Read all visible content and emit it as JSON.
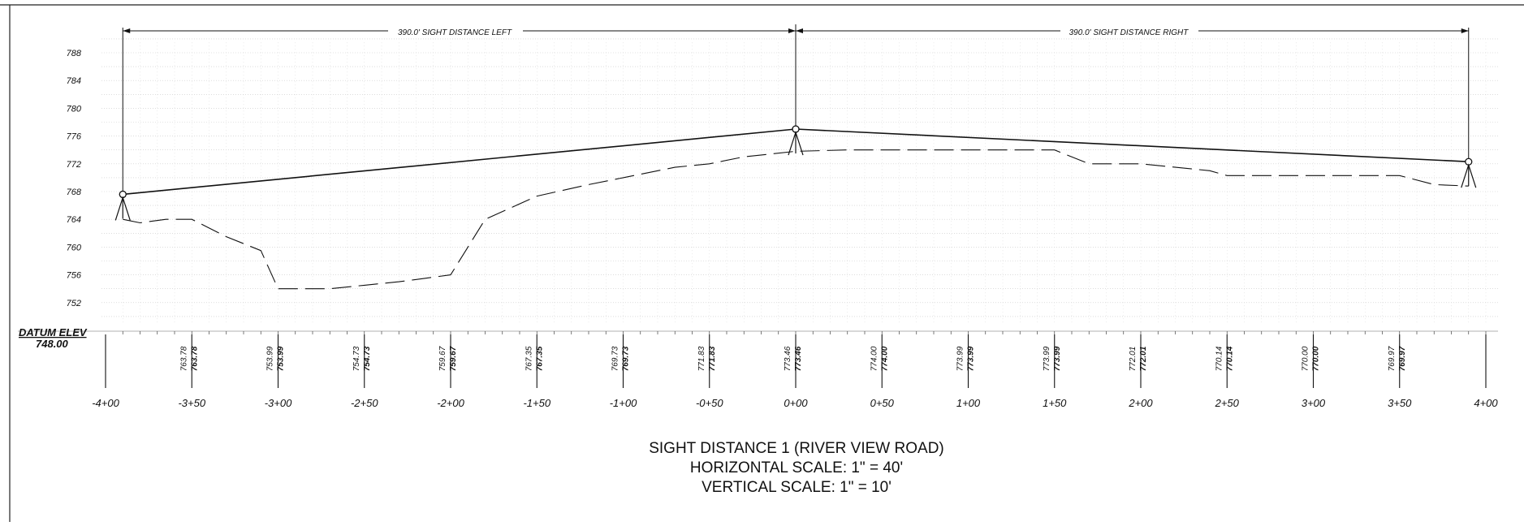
{
  "title_block": {
    "title": "SIGHT DISTANCE 1 (RIVER VIEW ROAD)",
    "horizontal_scale": "HORIZONTAL SCALE:  1\" = 40'",
    "vertical_scale": "VERTICAL SCALE:  1\" = 10'"
  },
  "datum": {
    "label": "DATUM ELEV",
    "value": "748.00"
  },
  "dimensions": {
    "left_label": "390.0' SIGHT DISTANCE LEFT",
    "right_label": "390.0' SIGHT DISTANCE RIGHT"
  },
  "chart_data": {
    "type": "line",
    "x_range": [
      -400,
      400
    ],
    "y_range": [
      748,
      790
    ],
    "y_ticks": [
      752,
      756,
      760,
      764,
      768,
      772,
      776,
      780,
      784,
      788
    ],
    "station_ticks": [
      -400,
      -350,
      -300,
      -250,
      -200,
      -150,
      -100,
      -50,
      0,
      50,
      100,
      150,
      200,
      250,
      300,
      350,
      400
    ],
    "station_labels": [
      "-4+00",
      "-3+50",
      "-3+00",
      "-2+50",
      "-2+00",
      "-1+50",
      "-1+00",
      "-0+50",
      "0+00",
      "0+50",
      "1+00",
      "1+50",
      "2+00",
      "2+50",
      "3+00",
      "3+50",
      "4+00"
    ],
    "elevation_stations": [
      -350,
      -300,
      -250,
      -200,
      -150,
      -100,
      -50,
      0,
      50,
      100,
      150,
      200,
      250,
      300,
      350
    ],
    "elevation_labels": [
      "763.78",
      "753.99",
      "754.73",
      "759.67",
      "767.35",
      "769.73",
      "771.83",
      "773.46",
      "774.00",
      "773.99",
      "773.99",
      "772.01",
      "770.14",
      "770.00",
      "769.97"
    ],
    "series": [
      {
        "line": "solid",
        "x": [
          -390,
          0,
          390
        ],
        "y": [
          767.6,
          777.0,
          772.3
        ]
      },
      {
        "line": "dashed",
        "x": [
          -390,
          -380,
          -365,
          -350,
          -330,
          -310,
          -300,
          -290,
          -270,
          -250,
          -230,
          -215,
          -200,
          -190,
          -180,
          -150,
          -120,
          -100,
          -70,
          -50,
          -30,
          0,
          30,
          100,
          150,
          170,
          200,
          240,
          250,
          300,
          350,
          370,
          390
        ],
        "y": [
          764.0,
          763.5,
          764.0,
          764.0,
          761.5,
          759.5,
          754.0,
          754.0,
          754.0,
          754.5,
          755.0,
          755.5,
          756.0,
          760.0,
          764.0,
          767.35,
          769.0,
          770.0,
          771.5,
          772.0,
          773.0,
          773.8,
          774.0,
          774.0,
          774.0,
          772.0,
          772.0,
          771.0,
          770.3,
          770.3,
          770.3,
          769.0,
          768.8
        ]
      }
    ]
  }
}
